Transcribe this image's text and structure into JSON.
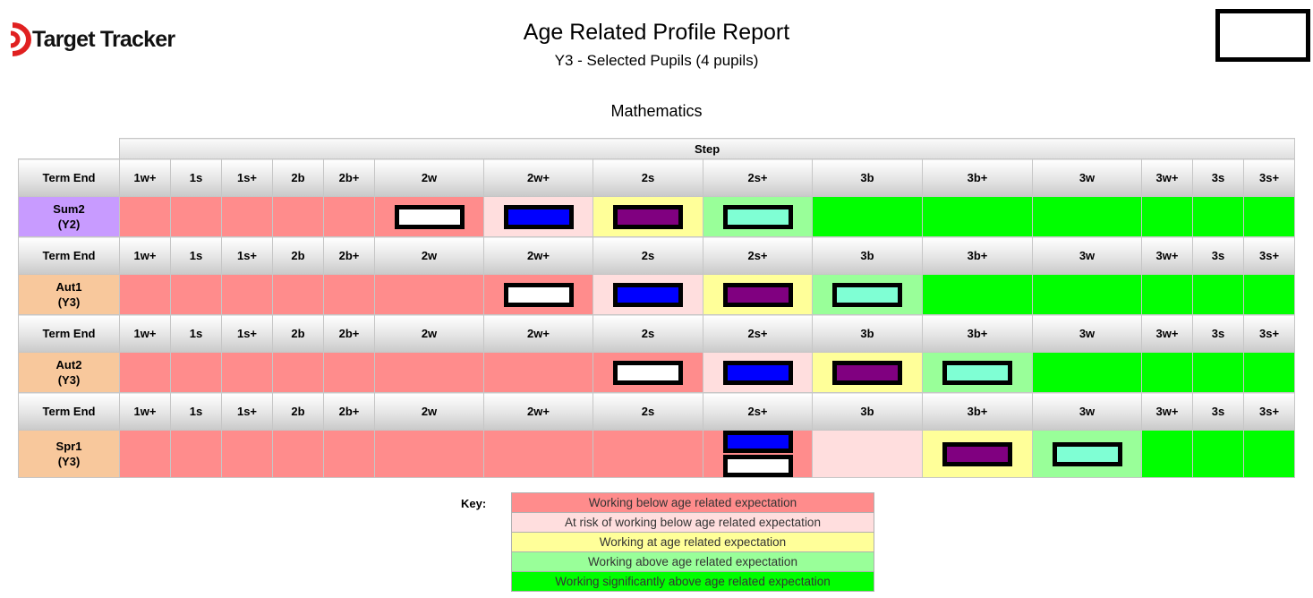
{
  "header": {
    "logo_text": "Target Tracker",
    "title": "Age Related Profile Report",
    "subtitle": "Y3 - Selected Pupils (4 pupils)",
    "section": "Mathematics"
  },
  "colors": {
    "below": "#ff8c8c",
    "risk": "#ffdede",
    "at": "#ffff99",
    "above": "#99ff99",
    "significantly_above": "#00ff00",
    "logo_red": "#e02020"
  },
  "table": {
    "step_label": "Step",
    "term_label": "Term End",
    "steps": [
      "1w+",
      "1s",
      "1s+",
      "2b",
      "2b+",
      "2w",
      "2w+",
      "2s",
      "2s+",
      "3b",
      "3b+",
      "3w",
      "3w+",
      "3s",
      "3s+"
    ],
    "rows": [
      {
        "term": "Sum2",
        "year": "(Y2)",
        "label_color": "#c89bff",
        "bands": [
          "below",
          "below",
          "below",
          "below",
          "below",
          "below",
          "risk",
          "at",
          "above",
          "sig",
          "sig",
          "sig",
          "sig",
          "sig",
          "sig"
        ],
        "markers": [
          {
            "step": "2w",
            "colors": [
              "#ffffff"
            ]
          },
          {
            "step": "2w+",
            "colors": [
              "#0000ff"
            ]
          },
          {
            "step": "2s",
            "colors": [
              "#800080"
            ]
          },
          {
            "step": "2s+",
            "colors": [
              "#7fffd4"
            ]
          }
        ]
      },
      {
        "term": "Aut1",
        "year": "(Y3)",
        "label_color": "#f8c89c",
        "bands": [
          "below",
          "below",
          "below",
          "below",
          "below",
          "below",
          "below",
          "risk",
          "at",
          "above",
          "sig",
          "sig",
          "sig",
          "sig",
          "sig"
        ],
        "markers": [
          {
            "step": "2w+",
            "colors": [
              "#ffffff"
            ]
          },
          {
            "step": "2s",
            "colors": [
              "#0000ff"
            ]
          },
          {
            "step": "2s+",
            "colors": [
              "#800080"
            ]
          },
          {
            "step": "3b",
            "colors": [
              "#7fffd4"
            ]
          }
        ]
      },
      {
        "term": "Aut2",
        "year": "(Y3)",
        "label_color": "#f8c89c",
        "bands": [
          "below",
          "below",
          "below",
          "below",
          "below",
          "below",
          "below",
          "below",
          "risk",
          "at",
          "above",
          "sig",
          "sig",
          "sig",
          "sig"
        ],
        "markers": [
          {
            "step": "2s",
            "colors": [
              "#ffffff"
            ]
          },
          {
            "step": "2s+",
            "colors": [
              "#0000ff"
            ]
          },
          {
            "step": "3b",
            "colors": [
              "#800080"
            ]
          },
          {
            "step": "3b+",
            "colors": [
              "#7fffd4"
            ]
          }
        ]
      },
      {
        "term": "Spr1",
        "year": "(Y3)",
        "label_color": "#f8c89c",
        "bands": [
          "below",
          "below",
          "below",
          "below",
          "below",
          "below",
          "below",
          "below",
          "below",
          "risk",
          "at",
          "above",
          "sig",
          "sig",
          "sig"
        ],
        "markers": [
          {
            "step": "2s+",
            "colors": [
              "#0000ff",
              "#ffffff"
            ]
          },
          {
            "step": "3b+",
            "colors": [
              "#800080"
            ]
          },
          {
            "step": "3w",
            "colors": [
              "#7fffd4"
            ]
          }
        ]
      }
    ]
  },
  "key": {
    "label": "Key:",
    "items": [
      {
        "text": "Working below age related expectation",
        "color": "#ff8c8c"
      },
      {
        "text": "At risk of working below age related expectation",
        "color": "#ffdede"
      },
      {
        "text": "Working at age related expectation",
        "color": "#ffff99"
      },
      {
        "text": "Working above age related expectation",
        "color": "#99ff99"
      },
      {
        "text": "Working significantly above age related expectation",
        "color": "#00ff00"
      }
    ]
  }
}
